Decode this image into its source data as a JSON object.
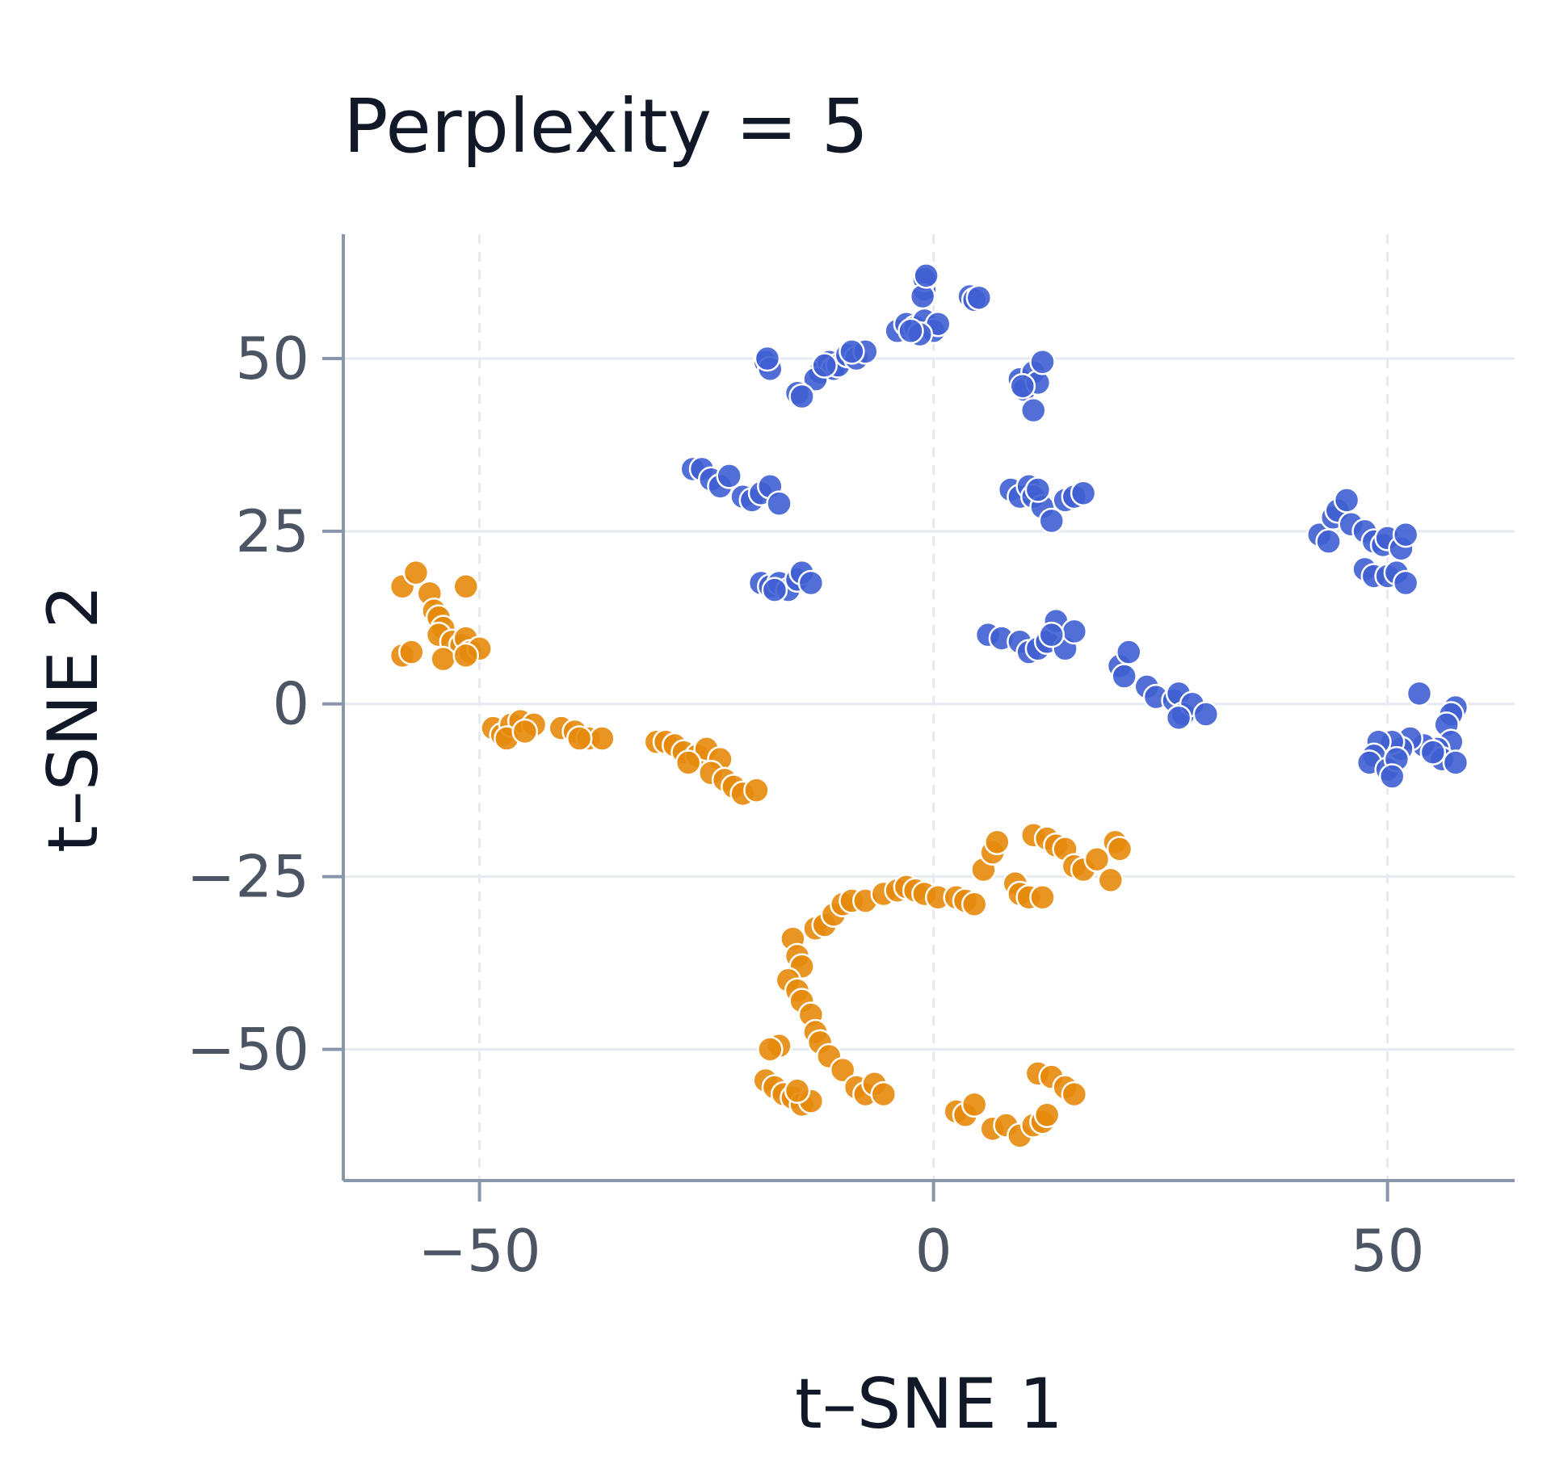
{
  "chart_data": {
    "type": "scatter",
    "title": "Perplexity = 5",
    "xlabel": "t–SNE 1",
    "ylabel": "t–SNE 2",
    "xlim": [
      -65,
      64
    ],
    "ylim": [
      -69,
      68
    ],
    "xticks": [
      -50,
      0,
      50
    ],
    "yticks": [
      50,
      25,
      0,
      -25,
      -50
    ],
    "xtick_labels": [
      "−50",
      "0",
      "50"
    ],
    "ytick_labels": [
      "50",
      "25",
      "0",
      "−25",
      "−50"
    ],
    "grid": true,
    "legend": "none",
    "series": [
      {
        "color": "#3f5fd3",
        "points": [
          [
            -18.5,
            49.5
          ],
          [
            -18.0,
            48.5
          ],
          [
            -18.3,
            50.0
          ],
          [
            -12.5,
            48.0
          ],
          [
            -11.5,
            49.5
          ],
          [
            -11.0,
            48.5
          ],
          [
            -10.5,
            49.0
          ],
          [
            -13.0,
            47.0
          ],
          [
            -12.0,
            49.0
          ],
          [
            -9.5,
            50.5
          ],
          [
            -8.5,
            50.0
          ],
          [
            -7.5,
            51.0
          ],
          [
            -9.0,
            51.0
          ],
          [
            -15.0,
            45.0
          ],
          [
            -14.5,
            44.5
          ],
          [
            -4.0,
            54.0
          ],
          [
            -3.0,
            55.0
          ],
          [
            -2.0,
            54.5
          ],
          [
            -1.0,
            55.5
          ],
          [
            0.0,
            54.0
          ],
          [
            0.5,
            55.0
          ],
          [
            -1.5,
            53.5
          ],
          [
            -2.5,
            54.0
          ],
          [
            -1.0,
            60.0
          ],
          [
            -1.0,
            61.5
          ],
          [
            -1.2,
            59.0
          ],
          [
            -0.8,
            62.0
          ],
          [
            4.0,
            59.0
          ],
          [
            4.5,
            58.5
          ],
          [
            5.0,
            58.8
          ],
          [
            9.5,
            47.0
          ],
          [
            10.0,
            45.5
          ],
          [
            11.0,
            48.0
          ],
          [
            11.5,
            46.5
          ],
          [
            12.0,
            49.5
          ],
          [
            11.0,
            42.5
          ],
          [
            9.8,
            46.0
          ],
          [
            -26.5,
            34.0
          ],
          [
            -25.5,
            34.0
          ],
          [
            -24.5,
            32.5
          ],
          [
            -23.5,
            31.5
          ],
          [
            -22.5,
            33.0
          ],
          [
            -21.0,
            30.0
          ],
          [
            -20.0,
            29.5
          ],
          [
            -19.0,
            30.5
          ],
          [
            -18.0,
            31.5
          ],
          [
            -17.0,
            29.0
          ],
          [
            8.5,
            31.0
          ],
          [
            9.5,
            30.0
          ],
          [
            10.5,
            31.5
          ],
          [
            11.0,
            30.0
          ],
          [
            12.0,
            28.5
          ],
          [
            13.0,
            26.5
          ],
          [
            14.5,
            29.5
          ],
          [
            15.5,
            30.0
          ],
          [
            16.5,
            30.5
          ],
          [
            11.5,
            31.0
          ],
          [
            -19.0,
            17.5
          ],
          [
            -18.0,
            17.0
          ],
          [
            -17.0,
            17.5
          ],
          [
            -16.0,
            16.5
          ],
          [
            -15.0,
            18.0
          ],
          [
            -14.5,
            19.0
          ],
          [
            -13.5,
            17.5
          ],
          [
            -17.5,
            16.5
          ],
          [
            6.0,
            10.0
          ],
          [
            7.5,
            9.5
          ],
          [
            9.5,
            9.0
          ],
          [
            10.5,
            7.5
          ],
          [
            11.5,
            8.0
          ],
          [
            12.5,
            9.0
          ],
          [
            13.5,
            12.0
          ],
          [
            14.5,
            8.0
          ],
          [
            15.5,
            10.5
          ],
          [
            13.0,
            10.0
          ],
          [
            20.5,
            5.5
          ],
          [
            21.0,
            4.0
          ],
          [
            21.5,
            7.5
          ],
          [
            23.5,
            2.5
          ],
          [
            24.5,
            1.0
          ],
          [
            26.5,
            0.5
          ],
          [
            27.0,
            1.5
          ],
          [
            27.5,
            -1.5
          ],
          [
            28.5,
            0.0
          ],
          [
            30.0,
            -1.5
          ],
          [
            27.0,
            -2.0
          ],
          [
            42.5,
            24.5
          ],
          [
            43.5,
            23.5
          ],
          [
            44.0,
            27.0
          ],
          [
            44.5,
            28.0
          ],
          [
            45.5,
            29.5
          ],
          [
            46.0,
            26.0
          ],
          [
            47.5,
            25.0
          ],
          [
            48.5,
            23.5
          ],
          [
            49.5,
            23.0
          ],
          [
            50.0,
            24.0
          ],
          [
            51.5,
            22.5
          ],
          [
            52.0,
            24.5
          ],
          [
            47.5,
            19.5
          ],
          [
            48.5,
            18.5
          ],
          [
            50.0,
            18.5
          ],
          [
            51.0,
            19.0
          ],
          [
            52.0,
            17.5
          ],
          [
            53.5,
            1.5
          ],
          [
            57.5,
            -0.5
          ],
          [
            57.0,
            -1.5
          ],
          [
            56.5,
            -3.0
          ],
          [
            57.0,
            -5.5
          ],
          [
            55.5,
            -6.5
          ],
          [
            54.0,
            -6.0
          ],
          [
            52.5,
            -5.0
          ],
          [
            51.5,
            -6.5
          ],
          [
            50.5,
            -5.5
          ],
          [
            49.0,
            -5.5
          ],
          [
            48.5,
            -7.5
          ],
          [
            48.0,
            -8.5
          ],
          [
            50.0,
            -9.5
          ],
          [
            51.0,
            -8.0
          ],
          [
            50.5,
            -10.5
          ],
          [
            56.0,
            -8.0
          ],
          [
            57.5,
            -8.5
          ],
          [
            55.0,
            -7.0
          ]
        ]
      },
      {
        "color": "#e68a0c",
        "points": [
          [
            -58.5,
            17.0
          ],
          [
            -57.0,
            19.0
          ],
          [
            -55.5,
            16.0
          ],
          [
            -51.5,
            17.0
          ],
          [
            -55.0,
            13.5
          ],
          [
            -54.5,
            12.5
          ],
          [
            -54.0,
            11.0
          ],
          [
            -54.5,
            10.0
          ],
          [
            -53.0,
            9.0
          ],
          [
            -52.0,
            8.5
          ],
          [
            -51.5,
            9.5
          ],
          [
            -51.0,
            7.5
          ],
          [
            -50.0,
            8.0
          ],
          [
            -58.5,
            7.0
          ],
          [
            -57.5,
            7.5
          ],
          [
            -54.0,
            6.5
          ],
          [
            -51.5,
            7.0
          ],
          [
            -48.5,
            -3.5
          ],
          [
            -47.5,
            -4.5
          ],
          [
            -46.5,
            -3.0
          ],
          [
            -45.5,
            -2.5
          ],
          [
            -44.0,
            -3.0
          ],
          [
            -41.0,
            -3.5
          ],
          [
            -39.5,
            -4.0
          ],
          [
            -38.0,
            -5.0
          ],
          [
            -36.5,
            -5.0
          ],
          [
            -39.0,
            -5.0
          ],
          [
            -47.0,
            -5.0
          ],
          [
            -45.0,
            -4.0
          ],
          [
            -30.5,
            -5.5
          ],
          [
            -29.5,
            -5.5
          ],
          [
            -28.5,
            -6.0
          ],
          [
            -27.5,
            -7.0
          ],
          [
            -26.0,
            -7.5
          ],
          [
            -25.0,
            -6.5
          ],
          [
            -23.5,
            -8.0
          ],
          [
            -24.5,
            -10.0
          ],
          [
            -23.0,
            -11.0
          ],
          [
            -22.0,
            -12.0
          ],
          [
            -21.0,
            -13.0
          ],
          [
            -19.5,
            -12.5
          ],
          [
            -27.0,
            -8.5
          ],
          [
            -15.5,
            -34.0
          ],
          [
            -15.0,
            -36.5
          ],
          [
            -14.5,
            -38.0
          ],
          [
            -16.0,
            -40.0
          ],
          [
            -15.0,
            -41.5
          ],
          [
            -14.5,
            -43.0
          ],
          [
            -13.5,
            -45.0
          ],
          [
            -13.0,
            -47.5
          ],
          [
            -12.5,
            -49.0
          ],
          [
            -11.5,
            -51.0
          ],
          [
            -10.0,
            -53.0
          ],
          [
            -17.0,
            -49.5
          ],
          [
            -18.0,
            -50.0
          ],
          [
            -18.5,
            -54.5
          ],
          [
            -17.5,
            -55.5
          ],
          [
            -16.5,
            -56.5
          ],
          [
            -15.5,
            -57.0
          ],
          [
            -14.5,
            -58.0
          ],
          [
            -13.5,
            -57.5
          ],
          [
            -15.0,
            -56.0
          ],
          [
            -8.5,
            -55.5
          ],
          [
            -7.5,
            -56.5
          ],
          [
            -6.5,
            -55.0
          ],
          [
            -5.5,
            -56.5
          ],
          [
            -13.0,
            -32.5
          ],
          [
            -12.0,
            -32.0
          ],
          [
            -11.0,
            -30.5
          ],
          [
            -10.0,
            -29.0
          ],
          [
            -9.0,
            -28.5
          ],
          [
            -7.5,
            -28.5
          ],
          [
            -5.5,
            -27.5
          ],
          [
            -4.0,
            -27.0
          ],
          [
            -3.0,
            -26.5
          ],
          [
            -2.0,
            -27.0
          ],
          [
            -1.0,
            -27.5
          ],
          [
            0.5,
            -28.0
          ],
          [
            2.5,
            -28.0
          ],
          [
            3.5,
            -28.5
          ],
          [
            4.5,
            -29.0
          ],
          [
            5.5,
            -24.0
          ],
          [
            6.5,
            -21.5
          ],
          [
            7.0,
            -20.0
          ],
          [
            9.0,
            -26.0
          ],
          [
            9.5,
            -27.5
          ],
          [
            10.5,
            -28.0
          ],
          [
            12.0,
            -28.0
          ],
          [
            11.0,
            -19.0
          ],
          [
            12.5,
            -19.5
          ],
          [
            13.5,
            -20.5
          ],
          [
            14.5,
            -21.0
          ],
          [
            15.5,
            -23.5
          ],
          [
            16.5,
            -24.0
          ],
          [
            18.0,
            -22.5
          ],
          [
            19.5,
            -25.5
          ],
          [
            20.0,
            -20.0
          ],
          [
            20.5,
            -21.0
          ],
          [
            2.5,
            -59.0
          ],
          [
            3.5,
            -59.5
          ],
          [
            4.5,
            -58.0
          ],
          [
            6.5,
            -61.5
          ],
          [
            8.0,
            -61.0
          ],
          [
            9.5,
            -62.5
          ],
          [
            11.0,
            -61.0
          ],
          [
            12.0,
            -60.5
          ],
          [
            12.5,
            -59.5
          ],
          [
            11.5,
            -53.5
          ],
          [
            13.0,
            -54.0
          ],
          [
            14.5,
            -55.5
          ],
          [
            15.5,
            -56.5
          ]
        ]
      }
    ]
  }
}
